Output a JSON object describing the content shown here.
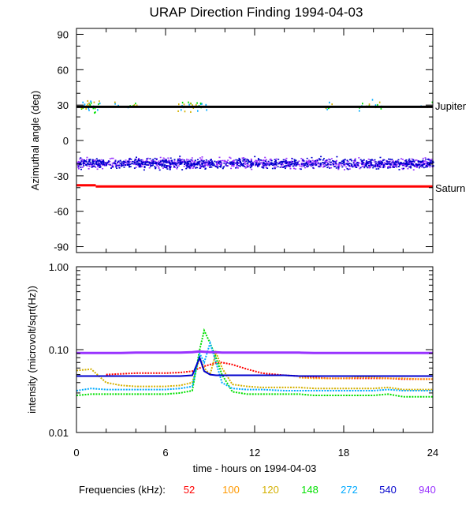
{
  "figure": {
    "title": "URAP Direction Finding  1994-04-03",
    "xlabel": "time - hours on 1994-04-03",
    "freq_label": "Frequencies (kHz):"
  },
  "chart_data": [
    {
      "type": "scatter",
      "title": "URAP Direction Finding  1994-04-03",
      "ylabel": "Azimuthal angle (deg)",
      "xlabel": "",
      "xlim": [
        0,
        24
      ],
      "ylim": [
        -95,
        95
      ],
      "yticks": [
        "90",
        "60",
        "30",
        "0",
        "-30",
        "-60",
        "-90"
      ],
      "reference_lines": [
        {
          "name": "Jupiter",
          "y_start": 28.5,
          "y_end": 28.5,
          "color": "#000000"
        },
        {
          "name": "Saturn",
          "y_start": -38,
          "y_end": -39,
          "color": "#ff0000"
        }
      ],
      "series": [
        {
          "name": "940",
          "description": "dense band",
          "y_center": -19,
          "y_spread": 9
        },
        {
          "name": "540",
          "description": "dense band",
          "y_center": -19,
          "y_spread": 9
        },
        {
          "name": "272",
          "description": "scattered near Jupiter line",
          "y_center": 30,
          "y_spread": 8
        },
        {
          "name": "148",
          "description": "scattered near Jupiter line",
          "y_center": 30,
          "y_spread": 8
        },
        {
          "name": "120",
          "description": "scattered near Jupiter line",
          "y_center": 30,
          "y_spread": 8
        }
      ]
    },
    {
      "type": "line",
      "ylabel": "intensity (microvolt/sqrt(Hz))",
      "xlabel": "time - hours on 1994-04-03",
      "xlim": [
        0,
        24
      ],
      "xticks": [
        "0",
        "6",
        "12",
        "18",
        "24"
      ],
      "yscale": "log",
      "ylim": [
        0.01,
        1.0
      ],
      "yticks": [
        "1.00",
        "0.10",
        "0.01"
      ],
      "x": [
        0,
        1,
        2,
        3,
        4,
        5,
        6,
        7,
        7.8,
        8.3,
        8.6,
        9.0,
        9.4,
        9.8,
        10.5,
        11.5,
        12.5,
        14,
        15,
        16,
        17,
        18,
        19,
        20,
        21,
        22,
        23,
        24
      ],
      "series": [
        {
          "name": "52",
          "color": "#ff0000",
          "values": [
            null,
            null,
            0.05,
            0.051,
            0.052,
            0.052,
            0.052,
            0.053,
            0.055,
            0.06,
            0.063,
            0.066,
            0.069,
            0.07,
            0.066,
            0.058,
            0.052,
            0.049,
            0.048,
            0.046,
            0.045,
            0.045,
            0.045,
            0.045,
            0.045,
            0.044,
            0.044,
            0.044
          ]
        },
        {
          "name": "100",
          "color": "#ff9900",
          "values": [
            null,
            null,
            null,
            null,
            null,
            null,
            null,
            null,
            null,
            null,
            null,
            null,
            null,
            null,
            null,
            null,
            null,
            null,
            0.046,
            0.045,
            0.045,
            0.045,
            0.046,
            0.046,
            0.045,
            0.045,
            0.044,
            0.044
          ]
        },
        {
          "name": "120",
          "color": "#d4b000",
          "values": [
            0.056,
            0.058,
            0.04,
            0.037,
            0.036,
            0.036,
            0.036,
            0.037,
            0.04,
            0.08,
            0.06,
            0.05,
            0.092,
            0.06,
            0.038,
            0.036,
            0.035,
            0.035,
            0.035,
            0.034,
            0.034,
            0.034,
            0.034,
            0.034,
            0.035,
            0.033,
            0.033,
            0.033
          ]
        },
        {
          "name": "148",
          "color": "#00e000",
          "values": [
            0.028,
            0.029,
            0.029,
            0.029,
            0.029,
            0.029,
            0.029,
            0.03,
            0.032,
            0.1,
            0.17,
            0.12,
            0.08,
            0.05,
            0.031,
            0.029,
            0.029,
            0.029,
            0.029,
            0.028,
            0.028,
            0.028,
            0.028,
            0.028,
            0.029,
            0.027,
            0.027,
            0.027
          ]
        },
        {
          "name": "272",
          "color": "#00aaff",
          "values": [
            0.032,
            0.034,
            0.033,
            0.033,
            0.033,
            0.033,
            0.033,
            0.034,
            0.036,
            0.09,
            0.07,
            0.12,
            0.07,
            0.04,
            0.034,
            0.033,
            0.033,
            0.032,
            0.032,
            0.032,
            0.032,
            0.032,
            0.032,
            0.032,
            0.033,
            0.032,
            0.032,
            0.032
          ]
        },
        {
          "name": "540",
          "color": "#0000cc",
          "values": [
            0.048,
            0.048,
            0.048,
            0.048,
            0.048,
            0.048,
            0.048,
            0.048,
            0.049,
            0.08,
            0.055,
            0.05,
            0.049,
            0.049,
            0.049,
            0.049,
            0.049,
            0.049,
            0.048,
            0.048,
            0.048,
            0.048,
            0.048,
            0.048,
            0.048,
            0.048,
            0.048,
            0.048
          ]
        },
        {
          "name": "940",
          "color": "#9933ff",
          "values": [
            0.091,
            0.091,
            0.091,
            0.091,
            0.092,
            0.092,
            0.092,
            0.092,
            0.093,
            0.095,
            0.094,
            0.093,
            0.093,
            0.092,
            0.092,
            0.092,
            0.092,
            0.092,
            0.092,
            0.091,
            0.091,
            0.091,
            0.091,
            0.091,
            0.091,
            0.091,
            0.091,
            0.091
          ]
        }
      ]
    }
  ],
  "legend": [
    {
      "label": "52",
      "color": "#ff0000"
    },
    {
      "label": "100",
      "color": "#ff9900"
    },
    {
      "label": "120",
      "color": "#d4b000"
    },
    {
      "label": "148",
      "color": "#00e000"
    },
    {
      "label": "272",
      "color": "#00aaff"
    },
    {
      "label": "540",
      "color": "#0000cc"
    },
    {
      "label": "940",
      "color": "#9933ff"
    }
  ]
}
